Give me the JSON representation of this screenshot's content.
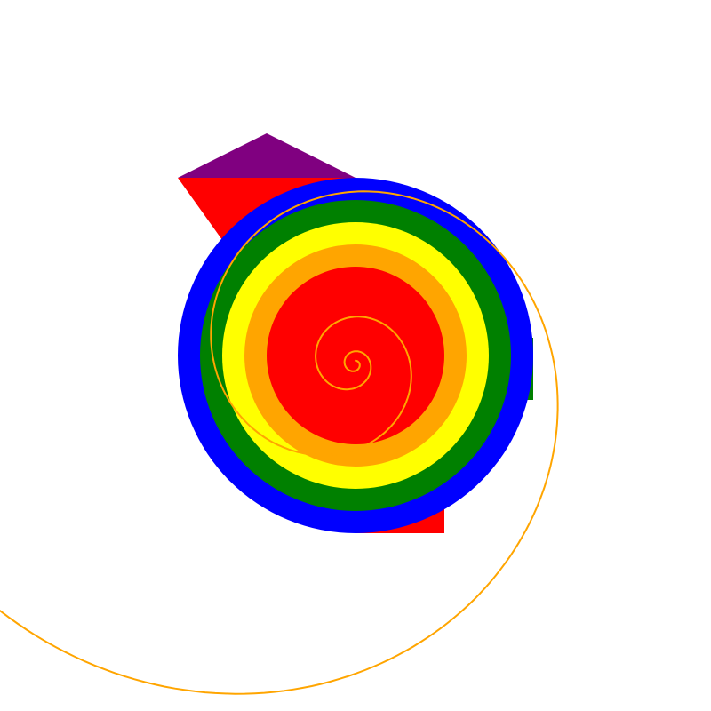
{
  "canvas": {
    "background": "#ffffff"
  },
  "colors": {
    "purple": "#800080",
    "red": "#ff0000",
    "orange": "#ffa500",
    "yellow": "#ffff00",
    "green": "#008000",
    "blue": "#0000ff",
    "spiral": "#ffa500"
  },
  "shapes": {
    "rings_outer_to_inner": [
      "blue",
      "green",
      "yellow",
      "orange",
      "red"
    ],
    "spiral_turns": 4
  }
}
